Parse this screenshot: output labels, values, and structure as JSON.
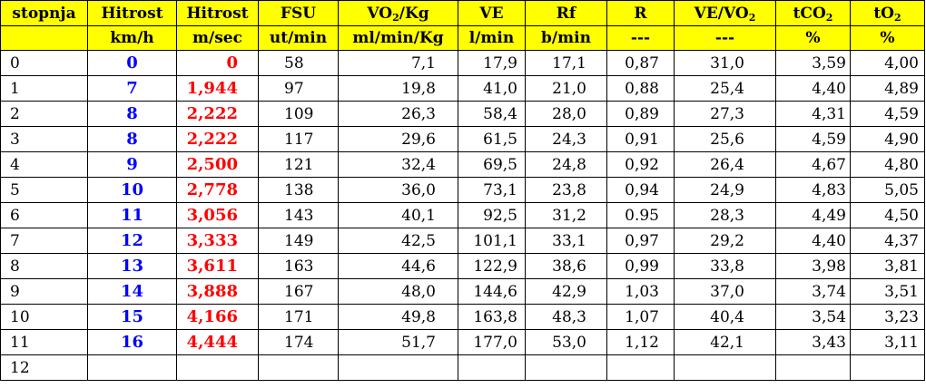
{
  "headers": {
    "row1": [
      "stopnja",
      "Hitrost",
      "Hitrost",
      "FSU",
      "VO",
      "VE",
      "Rf",
      "R",
      "VE/VO",
      "tCO",
      "tO"
    ],
    "row1_suffix": {
      "vo2": "/Kg",
      "vo2_sub": "2",
      "vevo2_sub": "2",
      "tco2_sub": "2",
      "to2_sub": "2"
    },
    "row2": [
      "",
      "km/h",
      "m/sec",
      "ut/min",
      "ml/min/Kg",
      "l/min",
      "b/min",
      "---",
      "---",
      "%",
      "%"
    ]
  },
  "rows": [
    {
      "stopnja": "0",
      "kmh": "0",
      "ms": "0",
      "fsu": "58",
      "vo2": "7,1",
      "ve": "17,9",
      "rf": "17,1",
      "r": "0,87",
      "vevo2": "31,0",
      "tco2": "3,59",
      "to2": "4,00"
    },
    {
      "stopnja": "1",
      "kmh": "7",
      "ms": "1,944",
      "fsu": "97",
      "vo2": "19,8",
      "ve": "41,0",
      "rf": "21,0",
      "r": "0,88",
      "vevo2": "25,4",
      "tco2": "4,40",
      "to2": "4,89"
    },
    {
      "stopnja": "2",
      "kmh": "8",
      "ms": "2,222",
      "fsu": "109",
      "vo2": "26,3",
      "ve": "58,4",
      "rf": "28,0",
      "r": "0,89",
      "vevo2": "27,3",
      "tco2": "4,31",
      "to2": "4,59"
    },
    {
      "stopnja": "3",
      "kmh": "8",
      "ms": "2,222",
      "fsu": "117",
      "vo2": "29,6",
      "ve": "61,5",
      "rf": "24,3",
      "r": "0,91",
      "vevo2": "25,6",
      "tco2": "4,59",
      "to2": "4,90"
    },
    {
      "stopnja": "4",
      "kmh": "9",
      "ms": "2,500",
      "fsu": "121",
      "vo2": "32,4",
      "ve": "69,5",
      "rf": "24,8",
      "r": "0,92",
      "vevo2": "26,4",
      "tco2": "4,67",
      "to2": "4,80"
    },
    {
      "stopnja": "5",
      "kmh": "10",
      "ms": "2,778",
      "fsu": "138",
      "vo2": "36,0",
      "ve": "73,1",
      "rf": "23,8",
      "r": "0,94",
      "vevo2": "24,9",
      "tco2": "4,83",
      "to2": "5,05"
    },
    {
      "stopnja": "6",
      "kmh": "11",
      "ms": "3,056",
      "fsu": "143",
      "vo2": "40,1",
      "ve": "92,5",
      "rf": "31,2",
      "r": "0.95",
      "vevo2": "28,3",
      "tco2": "4,49",
      "to2": "4,50"
    },
    {
      "stopnja": "7",
      "kmh": "12",
      "ms": "3,333",
      "fsu": "149",
      "vo2": "42,5",
      "ve": "101,1",
      "rf": "33,1",
      "r": "0,97",
      "vevo2": "29,2",
      "tco2": "4,40",
      "to2": "4,37"
    },
    {
      "stopnja": "8",
      "kmh": "13",
      "ms": "3,611",
      "fsu": "163",
      "vo2": "44,6",
      "ve": "122,9",
      "rf": "38,6",
      "r": "0,99",
      "vevo2": "33,8",
      "tco2": "3,98",
      "to2": "3,81"
    },
    {
      "stopnja": "9",
      "kmh": "14",
      "ms": "3,888",
      "fsu": "167",
      "vo2": "48,0",
      "ve": "144,6",
      "rf": "42,9",
      "r": "1,03",
      "vevo2": "37,0",
      "tco2": "3,74",
      "to2": "3,51"
    },
    {
      "stopnja": "10",
      "kmh": "15",
      "ms": "4,166",
      "fsu": "171",
      "vo2": "49,8",
      "ve": "163,8",
      "rf": "48,3",
      "r": "1,07",
      "vevo2": "40,4",
      "tco2": "3,54",
      "to2": "3,23"
    },
    {
      "stopnja": "11",
      "kmh": "16",
      "ms": "4,444",
      "fsu": "174",
      "vo2": "51,7",
      "ve": "177,0",
      "rf": "53,0",
      "r": "1,12",
      "vevo2": "42,1",
      "tco2": "3,43",
      "to2": "3,11"
    },
    {
      "stopnja": "12",
      "kmh": "",
      "ms": "",
      "fsu": "",
      "vo2": "",
      "ve": "",
      "rf": "",
      "r": "",
      "vevo2": "",
      "tco2": "",
      "to2": ""
    }
  ],
  "colors": {
    "header_bg": "#ffff00",
    "speed_kmh": "#0000ff",
    "speed_ms": "#ff0000"
  }
}
